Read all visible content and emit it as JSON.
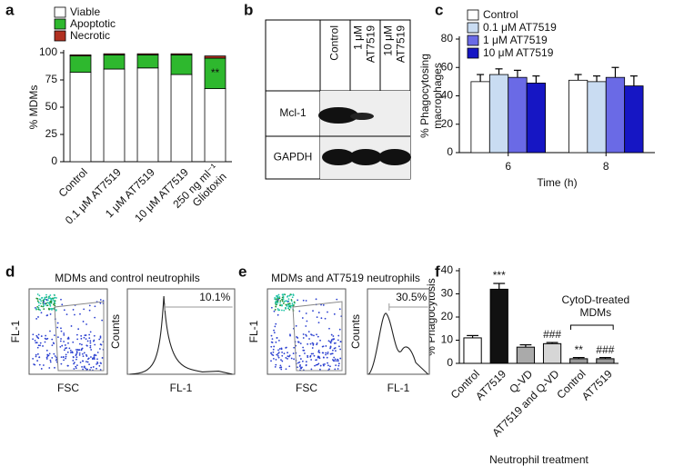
{
  "panel_labels": [
    "a",
    "b",
    "c",
    "d",
    "e",
    "f"
  ],
  "chart_data": [
    {
      "type": "bar",
      "stacked": true,
      "ylabel": "% MDMs",
      "categories": [
        "Control",
        "0.1 μM AT7519",
        "1 μM AT7519",
        "10 μM AT7519",
        "250 ng ml⁻¹\nGliotoxin"
      ],
      "series": [
        {
          "name": "Viable",
          "color": "#ffffff",
          "values": [
            82,
            85,
            86,
            80,
            67
          ]
        },
        {
          "name": "Apoptotic",
          "color": "#2eb82e",
          "values": [
            15,
            13,
            12,
            18,
            28
          ]
        },
        {
          "name": "Necrotic",
          "color": "#b03020",
          "values": [
            1,
            1,
            1,
            1,
            2
          ]
        }
      ],
      "significance": [
        null,
        null,
        null,
        null,
        "**"
      ],
      "ylim": [
        0,
        100
      ],
      "yticks": [
        0,
        25,
        50,
        75,
        100
      ]
    },
    {
      "type": "bar",
      "ylabel": "% Phagocytosing\nmacrophages",
      "xlabel": "Time (h)",
      "categories": [
        "6",
        "8"
      ],
      "series": [
        {
          "name": "Control",
          "color": "#ffffff",
          "values": [
            50,
            51
          ],
          "errors": [
            5,
            4
          ]
        },
        {
          "name": "0.1 μM AT7519",
          "color": "#c9dcf2",
          "values": [
            55,
            50
          ],
          "errors": [
            4,
            4
          ]
        },
        {
          "name": "1 μM AT7519",
          "color": "#6a6ae6",
          "values": [
            53,
            53
          ],
          "errors": [
            5,
            7
          ]
        },
        {
          "name": "10 μM AT7519",
          "color": "#1616c4",
          "values": [
            49,
            47
          ],
          "errors": [
            5,
            7
          ]
        }
      ],
      "ylim": [
        0,
        80
      ],
      "yticks": [
        0,
        20,
        40,
        60,
        80
      ]
    },
    {
      "type": "bar",
      "ylabel": "% Phagocytosis",
      "xlabel": "Neutrophil treatment",
      "categories": [
        "Control",
        "AT7519",
        "Q-VD",
        "AT7519 and Q-VD",
        "Control",
        "AT7519"
      ],
      "values": [
        11,
        32,
        7,
        8.5,
        2,
        2
      ],
      "errors": [
        1,
        2.5,
        1,
        0.5,
        0.5,
        0.5
      ],
      "colors": [
        "#ffffff",
        "#111111",
        "#aaaaaa",
        "#d6d6d6",
        "#999999",
        "#999999"
      ],
      "significance": [
        null,
        "***",
        null,
        "###",
        "**",
        "###"
      ],
      "bracket_label": "CytoD-treated\nMDMs",
      "ylim": [
        0,
        40
      ],
      "yticks": [
        0,
        10,
        20,
        30,
        40
      ]
    }
  ],
  "blot": {
    "columns": [
      "Control",
      "1 μM\nAT7519",
      "10 μM\nAT7519"
    ],
    "rows": [
      "Mcl-1",
      "GAPDH"
    ]
  },
  "flow": [
    {
      "title": "MDMs and control neutrophils",
      "scatter_x": "FSC",
      "scatter_y": "FL-1",
      "hist_x": "FL-1",
      "hist_y": "Counts",
      "percent": "10.1%"
    },
    {
      "title": "MDMs and AT7519 neutrophils",
      "scatter_x": "FSC",
      "scatter_y": "FL-1",
      "hist_x": "FL-1",
      "hist_y": "Counts",
      "percent": "30.5%"
    }
  ]
}
